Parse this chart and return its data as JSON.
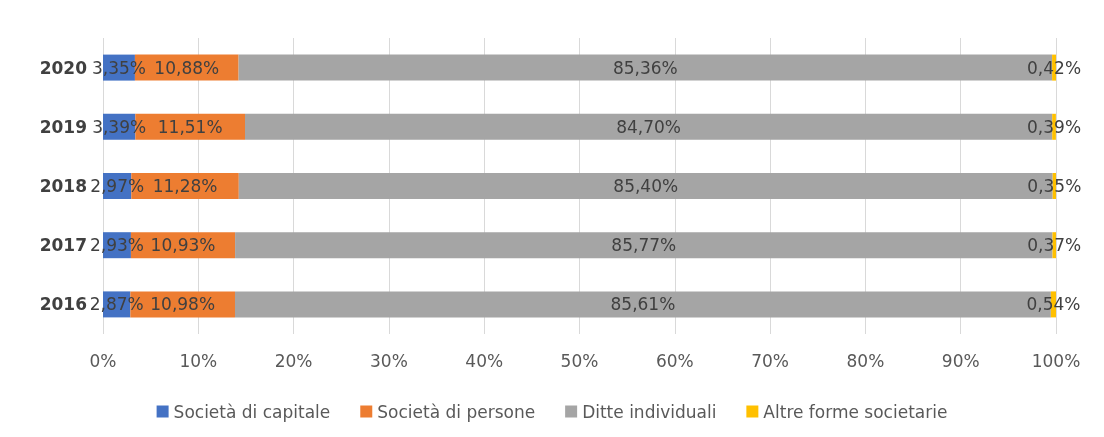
{
  "chart_data": {
    "type": "bar",
    "orientation": "horizontal",
    "stacked": true,
    "categories": [
      "2020",
      "2019",
      "2018",
      "2017",
      "2016"
    ],
    "series": [
      {
        "name": "Società di capitale",
        "color": "#4472c4",
        "values": [
          3.35,
          3.39,
          2.97,
          2.93,
          2.87
        ],
        "value_labels": [
          "3,35%",
          "3,39%",
          "2,97%",
          "2,93%",
          "2,87%"
        ]
      },
      {
        "name": "Società di persone",
        "color": "#ed7d31",
        "values": [
          10.88,
          11.51,
          11.28,
          10.93,
          10.98
        ],
        "value_labels": [
          "10,88%",
          "11,51%",
          "11,28%",
          "10,93%",
          "10,98%"
        ]
      },
      {
        "name": "Ditte individuali",
        "color": "#a5a5a5",
        "values": [
          85.36,
          84.7,
          85.4,
          85.77,
          85.61
        ],
        "value_labels": [
          "85,36%",
          "84,70%",
          "85,40%",
          "85,77%",
          "85,61%"
        ]
      },
      {
        "name": "Altre forme societarie",
        "color": "#ffc000",
        "values": [
          0.42,
          0.39,
          0.35,
          0.37,
          0.54
        ],
        "value_labels": [
          "0,42%",
          "0,39%",
          "0,35%",
          "0,37%",
          "0,54%"
        ]
      }
    ],
    "xlim": [
      0,
      100
    ],
    "xticks": [
      {
        "value": 0,
        "label": "0%"
      },
      {
        "value": 10,
        "label": "10%"
      },
      {
        "value": 20,
        "label": "20%"
      },
      {
        "value": 30,
        "label": "30%"
      },
      {
        "value": 40,
        "label": "40%"
      },
      {
        "value": 50,
        "label": "50%"
      },
      {
        "value": 60,
        "label": "60%"
      },
      {
        "value": 70,
        "label": "70%"
      },
      {
        "value": 80,
        "label": "80%"
      },
      {
        "value": 90,
        "label": "90%"
      },
      {
        "value": 100,
        "label": "100%"
      }
    ],
    "grid": "x",
    "legend": "bottom"
  }
}
